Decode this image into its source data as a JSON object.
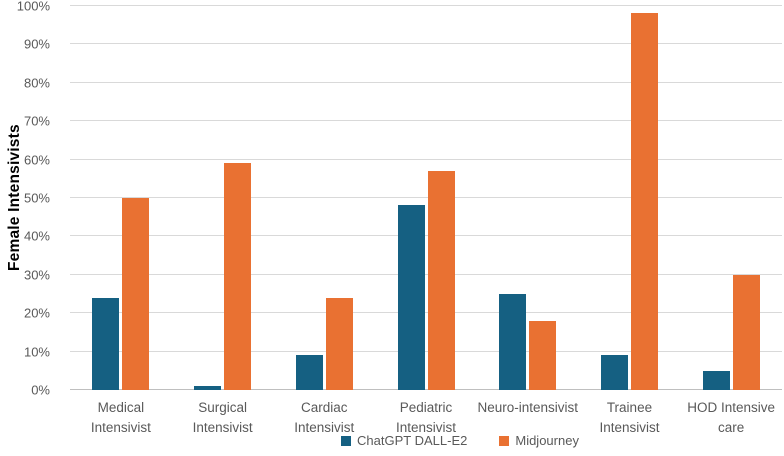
{
  "chart_data": {
    "type": "bar",
    "title": "",
    "xlabel": "",
    "ylabel": "Female Intensivists",
    "ylim": [
      0,
      100
    ],
    "ytick_step": 10,
    "ytick_labels": [
      "0%",
      "10%",
      "20%",
      "30%",
      "40%",
      "50%",
      "60%",
      "70%",
      "80%",
      "90%",
      "100%"
    ],
    "grid": true,
    "legend_position": "bottom",
    "categories": [
      "Medical Intensivist",
      "Surgical Intensivist",
      "Cardiac Intensivist",
      "Pediatric Intensivist",
      "Neuro-intensivist",
      "Trainee Intensivist",
      "HOD Intensive care"
    ],
    "series": [
      {
        "name": "ChatGPT DALL-E2",
        "color": "#156082",
        "values": [
          24,
          1,
          9,
          48,
          25,
          9,
          5
        ]
      },
      {
        "name": "Midjourney",
        "color": "#E97132",
        "values": [
          50,
          59,
          24,
          57,
          18,
          98,
          30
        ]
      }
    ]
  },
  "colors": {
    "background": "#FFFFFF",
    "gridline": "#D9D9D9",
    "axis_line": "#BFBFBF",
    "tick_text": "#595959",
    "axis_title_text": "#000000",
    "series_chatgpt": "#156082",
    "series_midjourney": "#E97132"
  }
}
